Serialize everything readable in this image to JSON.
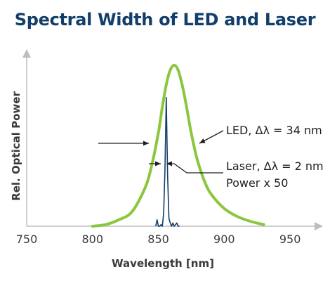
{
  "chart_data": {
    "type": "line",
    "title": "Spectral Width of LED and Laser",
    "xlabel": "Wavelength [nm]",
    "ylabel": "Rel. Optical Power",
    "xlim": [
      750,
      975
    ],
    "ylim": [
      0,
      1.1
    ],
    "x_ticks": [
      750,
      800,
      850,
      900,
      950
    ],
    "grid": false,
    "series": [
      {
        "name": "LED",
        "color": "#8cc63f",
        "x": [
          800,
          810,
          820,
          830,
          840,
          845,
          850,
          853,
          856,
          859,
          862,
          865,
          868,
          871,
          874,
          877,
          880,
          885,
          890,
          900,
          910,
          920,
          930
        ],
        "y": [
          0.0,
          0.01,
          0.04,
          0.09,
          0.24,
          0.38,
          0.58,
          0.74,
          0.88,
          0.97,
          1.0,
          0.97,
          0.88,
          0.76,
          0.62,
          0.5,
          0.4,
          0.28,
          0.2,
          0.11,
          0.06,
          0.03,
          0.01
        ]
      },
      {
        "name": "Laser",
        "color": "#123e6a",
        "x": [
          848,
          849,
          850,
          851,
          852,
          853,
          854,
          855,
          856,
          857,
          858,
          859,
          860,
          861,
          862,
          863,
          864,
          865,
          866
        ],
        "y": [
          0.0,
          0.04,
          0.0,
          0.0,
          0.01,
          0.0,
          0.08,
          0.35,
          0.8,
          0.32,
          0.05,
          0.02,
          0.0,
          0.02,
          0.0,
          0.01,
          0.02,
          0.0,
          0.0
        ]
      }
    ],
    "annotations": {
      "led": "LED, Δλ = 34 nm",
      "laser_line1": "Laser, Δλ = 2 nm",
      "laser_line2": "Power x 50"
    }
  }
}
